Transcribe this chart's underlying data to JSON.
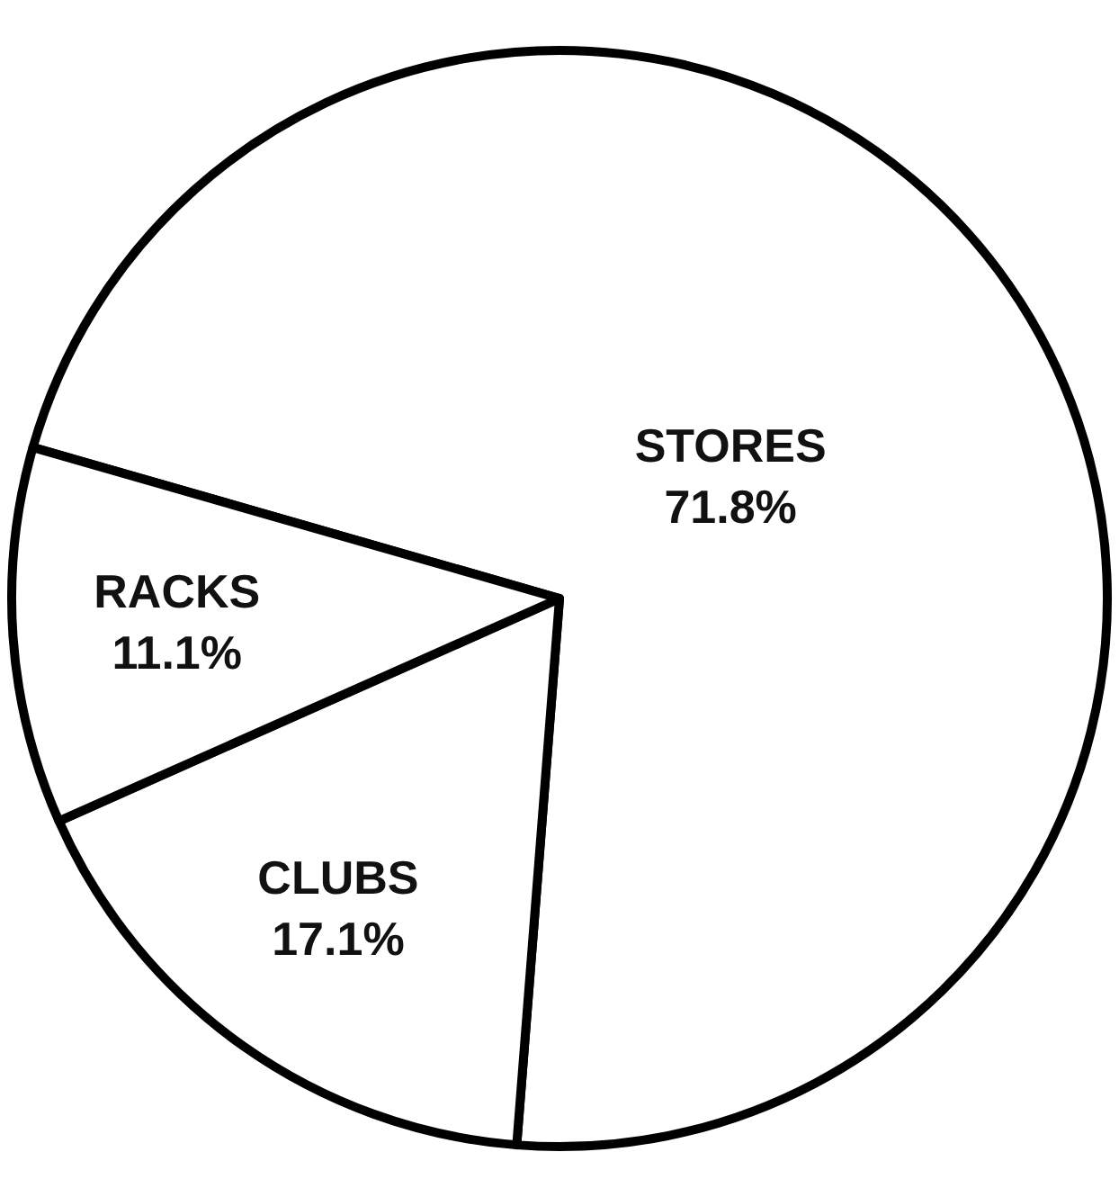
{
  "chart_data": {
    "type": "pie",
    "categories": [
      "STORES",
      "CLUBS",
      "RACKS"
    ],
    "values": [
      71.8,
      17.1,
      11.1
    ],
    "colors": [
      "#ffffff",
      "#ffffff",
      "#ffffff"
    ],
    "value_labels": [
      "71.8%",
      "17.1%",
      "11.1%"
    ],
    "legend": false
  }
}
